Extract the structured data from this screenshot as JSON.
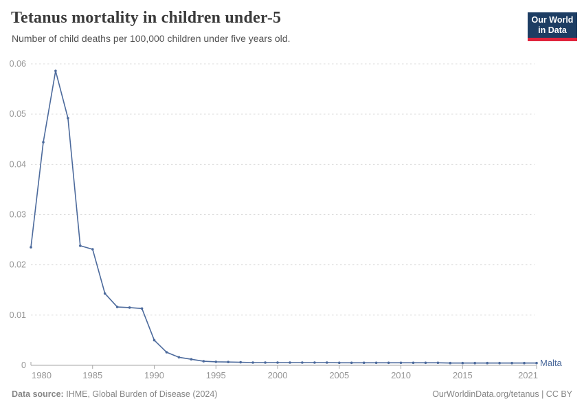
{
  "chart_data": {
    "type": "line",
    "title": "Tetanus mortality in children under-5",
    "subtitle": "Number of child deaths per 100,000 children under five years old.",
    "xlabel": "",
    "ylabel": "",
    "xlim": [
      1980,
      2021
    ],
    "ylim": [
      0,
      0.06
    ],
    "x_ticks": [
      1980,
      1985,
      1990,
      1995,
      2000,
      2005,
      2010,
      2015,
      2021
    ],
    "y_ticks": [
      0,
      0.01,
      0.02,
      0.03,
      0.04,
      0.05,
      0.06
    ],
    "grid": "horizontal dashed gridlines, legend as end-of-line label",
    "series": [
      {
        "name": "Malta",
        "color": "#4C6A9C",
        "years": [
          1980,
          1981,
          1982,
          1983,
          1984,
          1985,
          1986,
          1987,
          1988,
          1989,
          1990,
          1991,
          1992,
          1993,
          1994,
          1995,
          1996,
          1997,
          1998,
          1999,
          2000,
          2001,
          2002,
          2003,
          2004,
          2005,
          2006,
          2007,
          2008,
          2009,
          2010,
          2011,
          2012,
          2013,
          2014,
          2015,
          2016,
          2017,
          2018,
          2019,
          2020,
          2021
        ],
        "values": [
          0.0235,
          0.0444,
          0.0586,
          0.0492,
          0.0238,
          0.0231,
          0.0143,
          0.0116,
          0.0115,
          0.0113,
          0.005,
          0.0026,
          0.0016,
          0.0012,
          0.0008,
          0.0007,
          0.00065,
          0.0006,
          0.00055,
          0.00055,
          0.00055,
          0.00055,
          0.00055,
          0.00055,
          0.00055,
          0.0005,
          0.0005,
          0.0005,
          0.0005,
          0.0005,
          0.0005,
          0.0005,
          0.0005,
          0.0005,
          0.00045,
          0.00045,
          0.00045,
          0.00045,
          0.00045,
          0.00045,
          0.00045,
          0.00045
        ]
      }
    ]
  },
  "header": {
    "logo_line1": "Our World",
    "logo_line2": "in Data"
  },
  "footer": {
    "source_label": "Data source:",
    "source_text": "IHME, Global Burden of Disease (2024)",
    "credit": "OurWorldinData.org/tetanus | CC BY"
  },
  "colors": {
    "line": "#4C6A9C",
    "entity_label": "#4C6A9C",
    "title": "#3B3B3B",
    "subtitle": "#525252",
    "axis_text": "#979797",
    "grid": "#DCDCDC",
    "axis_line": "#A5A5A5",
    "tick": "#A5A5A5",
    "footer_text": "#868686",
    "logo_bg": "#1D3D63",
    "logo_accent": "#E0233C",
    "background": "#FFFFFF"
  }
}
